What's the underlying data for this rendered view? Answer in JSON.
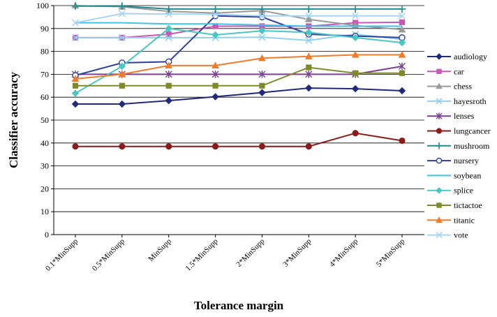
{
  "chart_data": {
    "type": "line",
    "xlabel": "Tolerance margin",
    "ylabel": "Classifier accuracy",
    "ylim": [
      0,
      100
    ],
    "yticks": [
      0,
      10,
      20,
      30,
      40,
      50,
      60,
      70,
      80,
      90,
      100
    ],
    "categories": [
      "0.1*MinSupp",
      "0.5*MinSupp",
      "MinSupp",
      "1.5*MinSupp",
      "2*MinSupp",
      "3*MinSupp",
      "4*MinSupp",
      "5*MinSupp"
    ],
    "grid": "horizontal major gridlines",
    "legend_position": "right",
    "series": [
      {
        "name": "audiology",
        "color": "#1f2a7a",
        "marker": "diamond",
        "values": [
          57.0,
          57.0,
          58.5,
          60.2,
          62.0,
          64.0,
          63.7,
          62.8
        ]
      },
      {
        "name": "car",
        "color": "#c957b5",
        "marker": "square",
        "values": [
          86.0,
          86.0,
          87.5,
          91.0,
          91.0,
          91.0,
          92.5,
          92.7
        ]
      },
      {
        "name": "chess",
        "color": "#9a9a9a",
        "marker": "triangle",
        "values": [
          100.0,
          99.5,
          97.5,
          96.7,
          97.8,
          94.0,
          91.3,
          89.5
        ]
      },
      {
        "name": "hayesroth",
        "color": "#8fd0f0",
        "marker": "x",
        "values": [
          86.0,
          86.0,
          86.0,
          86.0,
          86.2,
          84.8,
          87.5,
          85.2
        ]
      },
      {
        "name": "lenses",
        "color": "#7a3f8f",
        "marker": "star",
        "values": [
          70.0,
          70.0,
          70.0,
          70.0,
          70.0,
          70.0,
          70.0,
          73.5
        ]
      },
      {
        "name": "lungcancer",
        "color": "#8b1a1a",
        "marker": "circle",
        "values": [
          38.5,
          38.5,
          38.5,
          38.5,
          38.5,
          38.5,
          44.3,
          41.0
        ]
      },
      {
        "name": "mushroom",
        "color": "#1f8c8c",
        "marker": "plus",
        "values": [
          99.8,
          99.8,
          98.5,
          98.5,
          98.5,
          98.5,
          98.5,
          98.5
        ]
      },
      {
        "name": "nursery",
        "color": "#2f3f9f",
        "marker": "circle-open",
        "values": [
          69.5,
          75.0,
          75.5,
          95.5,
          95.0,
          87.5,
          86.7,
          86.0
        ]
      },
      {
        "name": "soybean",
        "color": "#3fc3e8",
        "marker": "none",
        "values": [
          92.5,
          92.5,
          92.0,
          92.0,
          91.5,
          91.0,
          91.0,
          91.0
        ]
      },
      {
        "name": "splice",
        "color": "#4ac7c2",
        "marker": "diamond",
        "values": [
          61.7,
          73.5,
          90.0,
          87.2,
          89.0,
          88.3,
          86.0,
          83.8
        ]
      },
      {
        "name": "tictactoe",
        "color": "#7f8a2a",
        "marker": "square",
        "values": [
          65.0,
          65.0,
          65.0,
          65.0,
          65.0,
          73.0,
          70.5,
          70.5
        ]
      },
      {
        "name": "titanic",
        "color": "#f07b2b",
        "marker": "triangle",
        "values": [
          68.0,
          70.0,
          73.8,
          73.8,
          77.0,
          77.8,
          78.5,
          78.5
        ]
      },
      {
        "name": "vote",
        "color": "#a9d4f2",
        "marker": "x",
        "values": [
          92.5,
          96.5,
          96.3,
          96.2,
          95.5,
          95.5,
          95.5,
          95.5
        ]
      }
    ]
  }
}
